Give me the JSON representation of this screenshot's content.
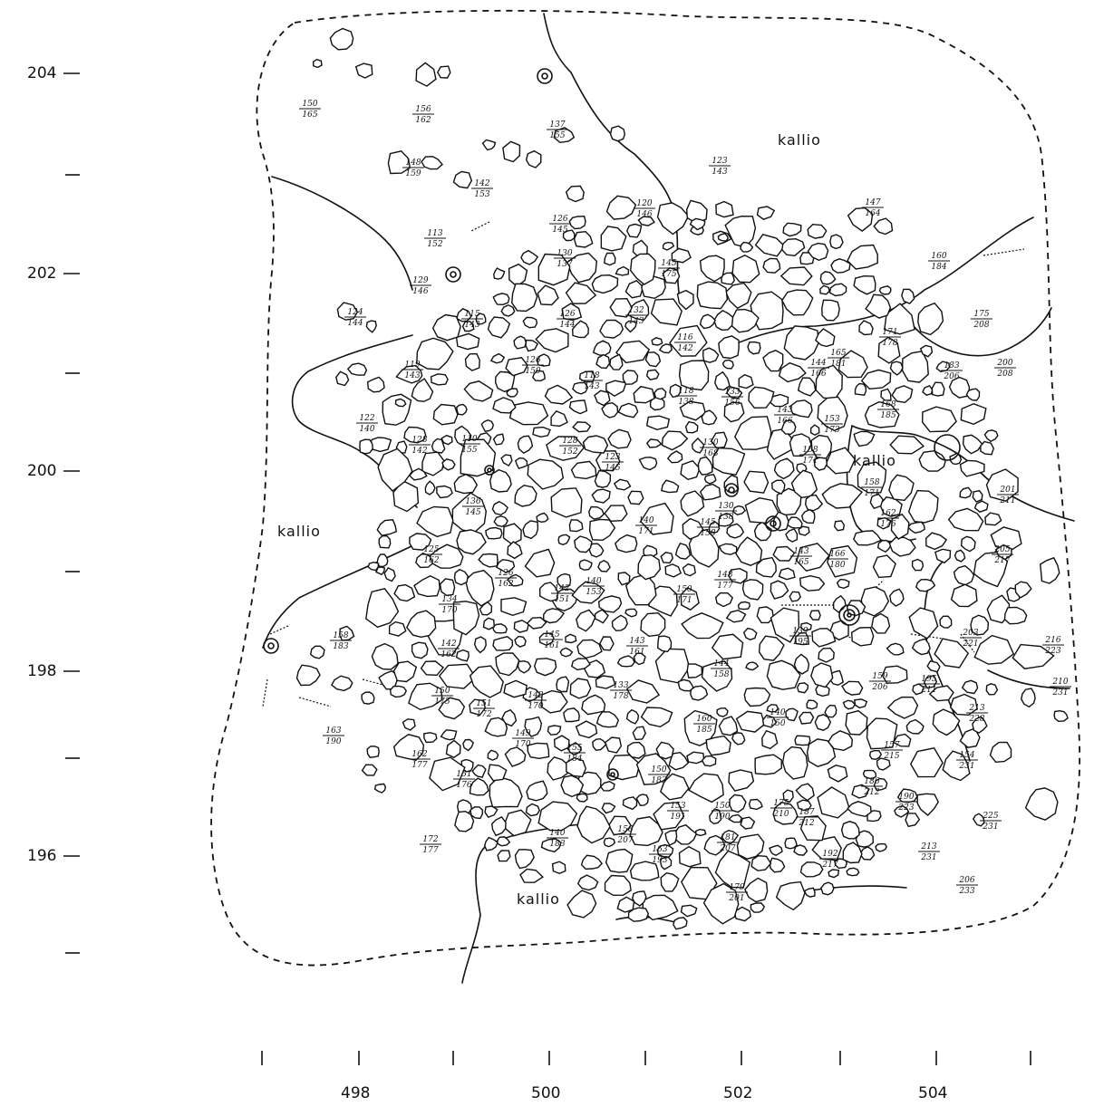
{
  "y_axis": {
    "labels": [
      "204",
      "202",
      "200",
      "198",
      "196"
    ]
  },
  "x_axis": {
    "labels": [
      "498",
      "500",
      "502",
      "504"
    ]
  },
  "area_labels": [
    "kallio",
    "kallio",
    "kallio",
    "kallio"
  ],
  "elevations": [
    [
      "150",
      "165"
    ],
    [
      "156",
      "162"
    ],
    [
      "137",
      "155"
    ],
    [
      "148",
      "159"
    ],
    [
      "142",
      "153"
    ],
    [
      "120",
      "146"
    ],
    [
      "123",
      "143"
    ],
    [
      "113",
      "152"
    ],
    [
      "126",
      "145"
    ],
    [
      "130",
      "137"
    ],
    [
      "145",
      "175"
    ],
    [
      "147",
      "164"
    ],
    [
      "160",
      "184"
    ],
    [
      "129",
      "146"
    ],
    [
      "124",
      "144"
    ],
    [
      "115",
      "143"
    ],
    [
      "126",
      "144"
    ],
    [
      "132",
      "143"
    ],
    [
      "116",
      "142"
    ],
    [
      "171",
      "178"
    ],
    [
      "175",
      "208"
    ],
    [
      "119",
      "143"
    ],
    [
      "126",
      "150"
    ],
    [
      "118",
      "143"
    ],
    [
      "118",
      "138"
    ],
    [
      "133",
      "156"
    ],
    [
      "144",
      "166"
    ],
    [
      "165",
      "181"
    ],
    [
      "183",
      "206"
    ],
    [
      "200",
      "208"
    ],
    [
      "122",
      "140"
    ],
    [
      "128",
      "142"
    ],
    [
      "110",
      "155"
    ],
    [
      "128",
      "152"
    ],
    [
      "123",
      "145"
    ],
    [
      "130",
      "168"
    ],
    [
      "143",
      "166"
    ],
    [
      "153",
      "173"
    ],
    [
      "168",
      "185"
    ],
    [
      "158",
      "171"
    ],
    [
      "158",
      "171"
    ],
    [
      "136",
      "145"
    ],
    [
      "140",
      "171"
    ],
    [
      "145",
      "158"
    ],
    [
      "130",
      "138"
    ],
    [
      "162",
      "176"
    ],
    [
      "201",
      "211"
    ],
    [
      "125",
      "162"
    ],
    [
      "126",
      "162"
    ],
    [
      "142",
      "151"
    ],
    [
      "140",
      "153"
    ],
    [
      "150",
      "171"
    ],
    [
      "148",
      "177"
    ],
    [
      "143",
      "165"
    ],
    [
      "166",
      "180"
    ],
    [
      "205",
      "217"
    ],
    [
      "134",
      "170"
    ],
    [
      "158",
      "183"
    ],
    [
      "142",
      "162"
    ],
    [
      "145",
      "161"
    ],
    [
      "143",
      "161"
    ],
    [
      "144",
      "158"
    ],
    [
      "139",
      "195"
    ],
    [
      "203",
      "221"
    ],
    [
      "216",
      "223"
    ],
    [
      "150",
      "175"
    ],
    [
      "151",
      "172"
    ],
    [
      "142",
      "170"
    ],
    [
      "133",
      "178"
    ],
    [
      "159",
      "206"
    ],
    [
      "195",
      "211"
    ],
    [
      "210",
      "231"
    ],
    [
      "149",
      "170"
    ],
    [
      "160",
      "185"
    ],
    [
      "140",
      "150"
    ],
    [
      "213",
      "228"
    ],
    [
      "163",
      "190"
    ],
    [
      "162",
      "177"
    ],
    [
      "155",
      "184"
    ],
    [
      "157",
      "215"
    ],
    [
      "154",
      "231"
    ],
    [
      "151",
      "176"
    ],
    [
      "150",
      "183"
    ],
    [
      "186",
      "212"
    ],
    [
      "190",
      "223"
    ],
    [
      "153",
      "191"
    ],
    [
      "150",
      "190"
    ],
    [
      "175",
      "210"
    ],
    [
      "187",
      "212"
    ],
    [
      "225",
      "231"
    ],
    [
      "172",
      "177"
    ],
    [
      "140",
      "183"
    ],
    [
      "158",
      "207"
    ],
    [
      "163",
      "193"
    ],
    [
      "181",
      "207"
    ],
    [
      "192",
      "217"
    ],
    [
      "213",
      "231"
    ],
    [
      "206",
      "233"
    ],
    [
      "179",
      "201"
    ]
  ]
}
